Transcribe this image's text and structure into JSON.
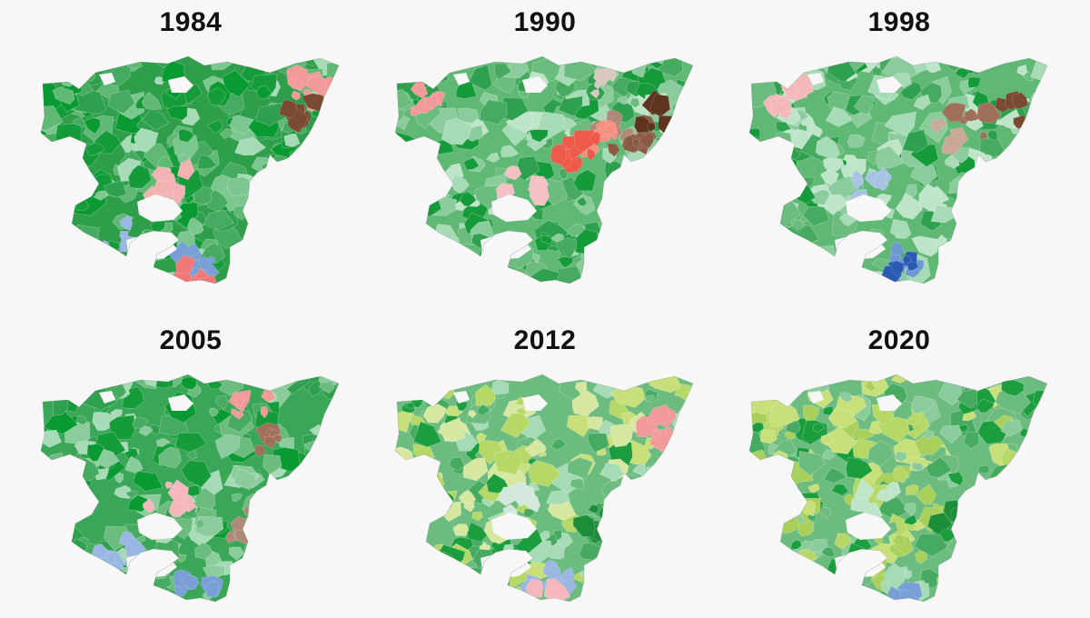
{
  "panels": [
    {
      "year": "1984",
      "base": "#2e9e4a",
      "palette": [
        "#0a9a32",
        "#169b3a",
        "#2ea04e",
        "#46ab60",
        "#5fb874",
        "#7cc690",
        "#a6dbb6"
      ],
      "patches": [
        {
          "color": "#f29a9a",
          "region": "east-coast"
        },
        {
          "color": "#f2b2b2",
          "region": "center"
        },
        {
          "color": "#7a9ed6",
          "region": "south"
        },
        {
          "color": "#9ab6e2",
          "region": "south-west"
        },
        {
          "color": "#7a4a32",
          "region": "far-east"
        },
        {
          "color": "#f07878",
          "region": "south-tip"
        }
      ]
    },
    {
      "year": "1990",
      "base": "#5fb874",
      "palette": [
        "#169b3a",
        "#2ea04e",
        "#46ab60",
        "#6cbc80",
        "#8acc9c",
        "#a6dbb6",
        "#bfe5c9"
      ],
      "patches": [
        {
          "color": "#b08a78",
          "region": "east"
        },
        {
          "color": "#8a5a44",
          "region": "east-2"
        },
        {
          "color": "#5e3420",
          "region": "far-east"
        },
        {
          "color": "#f59080",
          "region": "east-center"
        },
        {
          "color": "#ee5a4a",
          "region": "east-center-2"
        },
        {
          "color": "#d8c8c0",
          "region": "north-east"
        },
        {
          "color": "#f4c0c4",
          "region": "center"
        },
        {
          "color": "#f29a9a",
          "region": "north-west"
        }
      ]
    },
    {
      "year": "1998",
      "base": "#5fb874",
      "palette": [
        "#169b3a",
        "#2ea04e",
        "#46ab60",
        "#6cbc80",
        "#8acc9c",
        "#a6dbb6",
        "#bfe5c9"
      ],
      "patches": [
        {
          "color": "#a0705a",
          "region": "east"
        },
        {
          "color": "#7a4a32",
          "region": "far-east"
        },
        {
          "color": "#c9a898",
          "region": "east-center"
        },
        {
          "color": "#a8c2e4",
          "region": "center"
        },
        {
          "color": "#6e98d2",
          "region": "south"
        },
        {
          "color": "#2a5ab2",
          "region": "south-2"
        },
        {
          "color": "#f4b8b8",
          "region": "north-west"
        }
      ]
    },
    {
      "year": "2005",
      "base": "#3aa657",
      "palette": [
        "#0a9a32",
        "#169b3a",
        "#2ea04e",
        "#46ab60",
        "#6cbc80",
        "#8acc9c",
        "#a6dbb6"
      ],
      "patches": [
        {
          "color": "#f4b8bc",
          "region": "center"
        },
        {
          "color": "#b08a78",
          "region": "south-east"
        },
        {
          "color": "#a0705a",
          "region": "east"
        },
        {
          "color": "#7a9ed6",
          "region": "south"
        },
        {
          "color": "#9ab6e2",
          "region": "south-west"
        },
        {
          "color": "#f29a9a",
          "region": "north-east"
        }
      ]
    },
    {
      "year": "2012",
      "base": "#6cbc80",
      "palette": [
        "#1c9e3e",
        "#46ab60",
        "#6cbc80",
        "#a6dbb6",
        "#c8e07a",
        "#b6d866",
        "#d6e8a0"
      ],
      "patches": [
        {
          "color": "#d2e8da",
          "region": "center"
        },
        {
          "color": "#9ab6e2",
          "region": "south"
        },
        {
          "color": "#1c8e3a",
          "region": "south-east"
        },
        {
          "color": "#f4b8bc",
          "region": "south-tip"
        },
        {
          "color": "#f29a9a",
          "region": "far-east"
        }
      ]
    },
    {
      "year": "2020",
      "base": "#6cbc80",
      "palette": [
        "#1c9e3e",
        "#46ab60",
        "#6cbc80",
        "#8acc9c",
        "#c8e07a",
        "#b6d866",
        "#a8d05a"
      ],
      "patches": [
        {
          "color": "#bfe5c9",
          "region": "center"
        },
        {
          "color": "#1c8e3a",
          "region": "south-east"
        },
        {
          "color": "#a6dbb6",
          "region": "south"
        },
        {
          "color": "#7a9ed6",
          "region": "south-tip"
        }
      ]
    }
  ]
}
